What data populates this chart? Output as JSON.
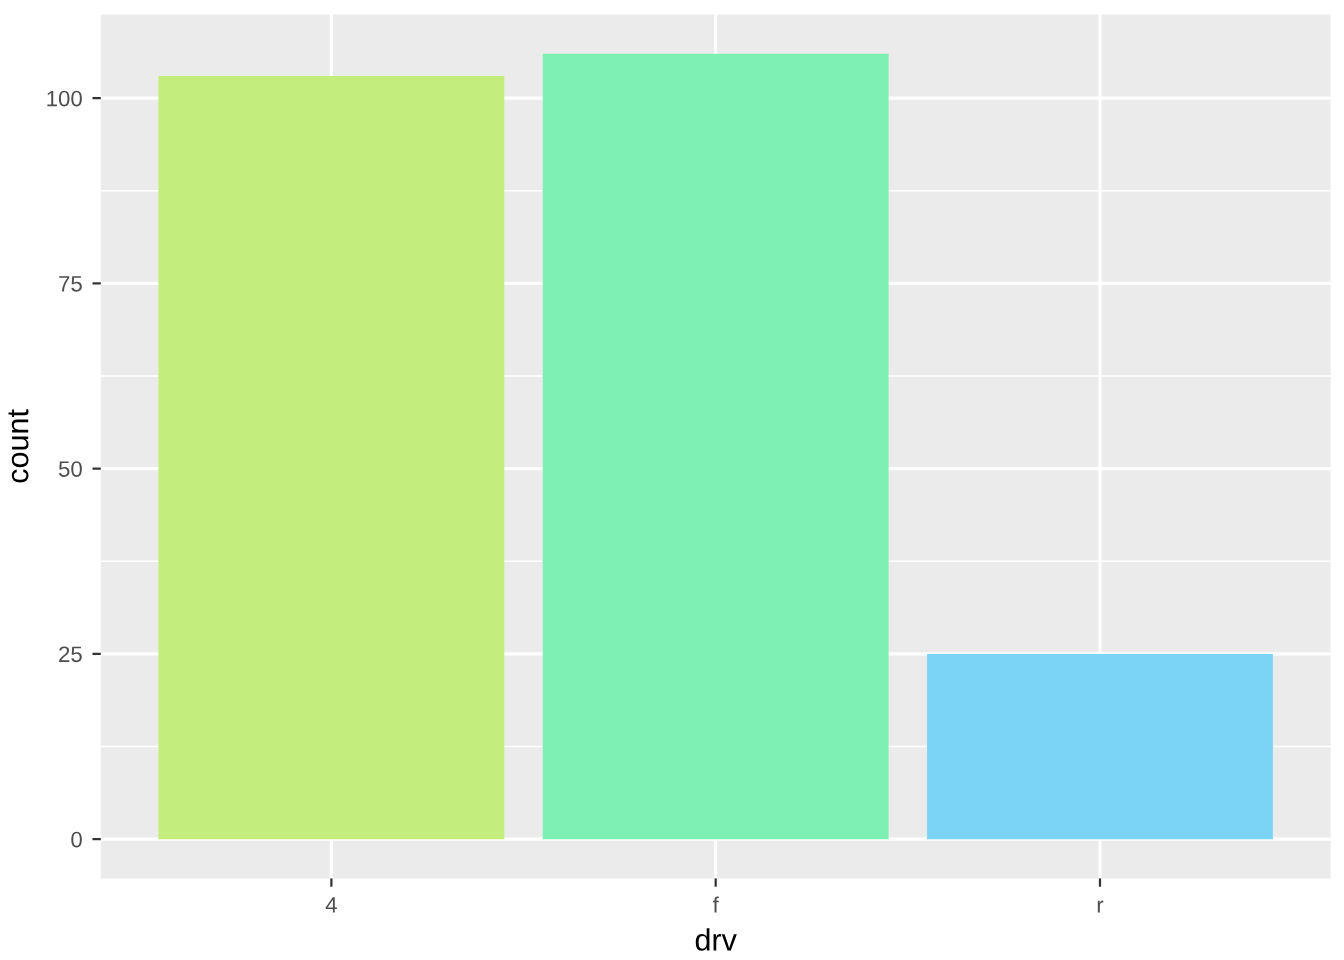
{
  "chart_data": {
    "type": "bar",
    "xlabel": "drv",
    "ylabel": "count",
    "categories": [
      "4",
      "f",
      "r"
    ],
    "values": [
      103,
      106,
      25
    ],
    "colors": [
      "#c4ee7c",
      "#7ef0b4",
      "#7cd4f4"
    ],
    "ylim": [
      -5.3,
      111.3
    ],
    "yticks": [
      0,
      25,
      50,
      75,
      100
    ],
    "grid": true
  }
}
